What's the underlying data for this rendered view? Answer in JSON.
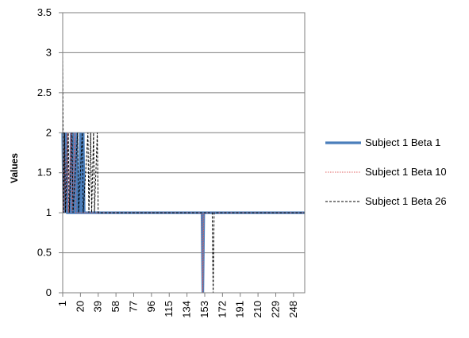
{
  "chart_data": {
    "type": "line",
    "title": "",
    "xlabel": "",
    "ylabel": "Values",
    "ylim": [
      0,
      3.5
    ],
    "yticks": [
      "0",
      "0.5",
      "1",
      "1.5",
      "2",
      "2.5",
      "3",
      "3.5"
    ],
    "xticks": [
      "1",
      "20",
      "39",
      "58",
      "77",
      "96",
      "115",
      "134",
      "153",
      "172",
      "191",
      "210",
      "229",
      "248"
    ],
    "xlim": [
      1,
      260
    ],
    "grid": "horizontal",
    "legend_position": "right",
    "series": [
      {
        "name": "Subject 1 Beta 1",
        "color": "#4a7ebb",
        "style": "solid-thick",
        "points": [
          [
            1,
            2
          ],
          [
            2,
            1
          ],
          [
            3,
            2
          ],
          [
            4,
            1
          ],
          [
            5,
            2
          ],
          [
            6,
            1
          ],
          [
            9,
            1
          ],
          [
            10,
            2
          ],
          [
            11,
            1
          ],
          [
            12,
            1
          ],
          [
            13,
            2
          ],
          [
            14,
            1
          ],
          [
            15,
            1
          ],
          [
            16,
            2
          ],
          [
            17,
            1
          ],
          [
            19,
            1
          ],
          [
            20,
            2
          ],
          [
            21,
            1
          ],
          [
            22,
            1
          ],
          [
            23,
            2
          ],
          [
            24,
            1
          ],
          [
            150,
            1
          ],
          [
            151,
            0
          ],
          [
            152,
            1
          ],
          [
            260,
            1
          ]
        ]
      },
      {
        "name": "Subject 1 Beta 10",
        "color": "#e06060",
        "style": "dotted",
        "points": [
          [
            1,
            2
          ],
          [
            2,
            1
          ],
          [
            3,
            2
          ],
          [
            4,
            1
          ],
          [
            6,
            2
          ],
          [
            7,
            1
          ],
          [
            10,
            2
          ],
          [
            11,
            1
          ],
          [
            14,
            2
          ],
          [
            15,
            1
          ],
          [
            16,
            1
          ],
          [
            150,
            1
          ],
          [
            151,
            0
          ],
          [
            152,
            1
          ],
          [
            260,
            1
          ]
        ]
      },
      {
        "name": "Subject 1 Beta 26",
        "color": "#000000",
        "style": "dashed",
        "points": [
          [
            1,
            3
          ],
          [
            2,
            1
          ],
          [
            3,
            2
          ],
          [
            4,
            1
          ],
          [
            7,
            2
          ],
          [
            8,
            1
          ],
          [
            11,
            2
          ],
          [
            12,
            1
          ],
          [
            17,
            2
          ],
          [
            18,
            1
          ],
          [
            22,
            2
          ],
          [
            23,
            1
          ],
          [
            28,
            2
          ],
          [
            29,
            1
          ],
          [
            31,
            2
          ],
          [
            32,
            1
          ],
          [
            34,
            2
          ],
          [
            35,
            1
          ],
          [
            38,
            2
          ],
          [
            39,
            1
          ],
          [
            40,
            1
          ],
          [
            161,
            1
          ],
          [
            162,
            0
          ],
          [
            163,
            1
          ],
          [
            260,
            1
          ]
        ]
      }
    ]
  }
}
